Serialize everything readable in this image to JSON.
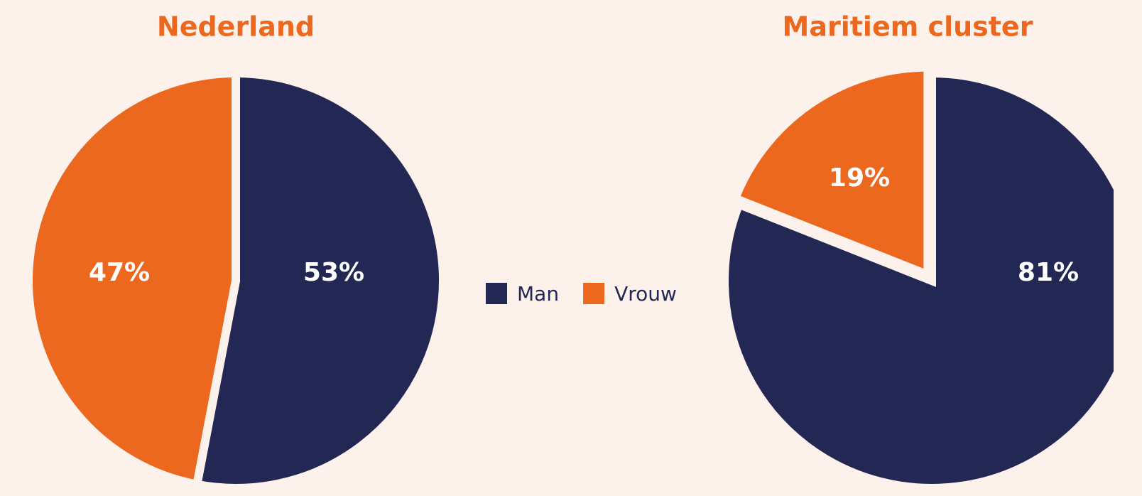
{
  "chart_data": [
    {
      "type": "pie",
      "title": "Nederland",
      "categories": [
        "Man",
        "Vrouw"
      ],
      "values": [
        53,
        47
      ],
      "value_labels": [
        "53%",
        "47%"
      ],
      "colors": [
        "#232754",
        "#ec681f"
      ]
    },
    {
      "type": "pie",
      "title": "Maritiem cluster",
      "categories": [
        "Man",
        "Vrouw"
      ],
      "values": [
        81,
        19
      ],
      "value_labels": [
        "81%",
        "19%"
      ],
      "colors": [
        "#232754",
        "#ec681f"
      ]
    }
  ]
}
